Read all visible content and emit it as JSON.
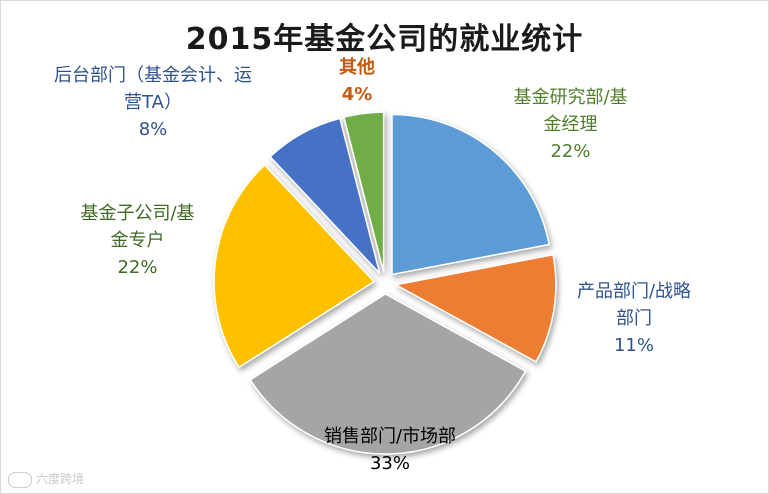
{
  "chart_data": {
    "type": "pie",
    "title": "2015年基金公司的就业统计",
    "slices": [
      {
        "label": "基金研究部/基金经理",
        "value": 22,
        "value_label": "22%",
        "color": "#5b9bd5"
      },
      {
        "label": "产品部门/战略部门",
        "value": 11,
        "value_label": "11%",
        "color": "#ed7d31"
      },
      {
        "label": "销售部门/市场部",
        "value": 33,
        "value_label": "33%",
        "color": "#a5a5a5"
      },
      {
        "label": "基金子公司/基金专户",
        "value": 22,
        "value_label": "22%",
        "color": "#ffc000"
      },
      {
        "label": "后台部门（基金会计、运营TA）",
        "value": 8,
        "value_label": "8%",
        "color": "#4472c4"
      },
      {
        "label": "其他",
        "value": 4,
        "value_label": "4%",
        "color": "#70ad47"
      }
    ],
    "exploded": true
  },
  "labels": {
    "research_line1": "基金研究部/基",
    "research_line2": "金经理",
    "product_line1": "产品部门/战略",
    "product_line2": "部门",
    "sales_line1": "销售部门/市场部",
    "sub_line1": "基金子公司/基",
    "sub_line2": "金专户",
    "back_line1": "后台部门（基金会计、运",
    "back_line2": "营TA）",
    "other_line1": "其他"
  },
  "watermark": {
    "text": "六度跨境",
    "icon": "logo-icon"
  }
}
